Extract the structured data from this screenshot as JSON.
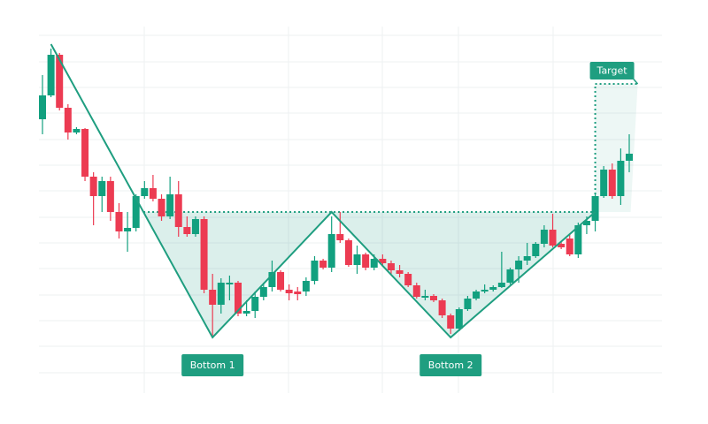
{
  "chart_data": {
    "type": "candlestick",
    "open": [
      76.25,
      83,
      94.5,
      79.5,
      72.5,
      73.5,
      60,
      54.5,
      58.75,
      50,
      44.5,
      45.5,
      54.5,
      56.75,
      53.75,
      48.75,
      55,
      45.75,
      43.75,
      48,
      28,
      23.75,
      29.5,
      30,
      21.25,
      22,
      26,
      28.75,
      33,
      28,
      27.5,
      27.5,
      30.5,
      36.25,
      34.25,
      43.75,
      42,
      35,
      38,
      34.25,
      36.75,
      35.5,
      33.5,
      32.5,
      29.25,
      25.75,
      26.25,
      25,
      20.75,
      17,
      22.5,
      25.5,
      27.5,
      28,
      28.75,
      30,
      33.75,
      36.25,
      37.5,
      41,
      45,
      41,
      42.5,
      38,
      46.25,
      47.5,
      54.5,
      62,
      54.5,
      64.5
    ],
    "high": [
      88.75,
      96.25,
      95,
      80.5,
      74,
      73.75,
      61.25,
      60,
      60,
      52.5,
      50,
      55,
      58.75,
      60.5,
      55,
      60,
      58.75,
      48.75,
      48.75,
      48.75,
      32.5,
      31.25,
      32,
      30.5,
      25,
      27.5,
      30,
      36.25,
      33.5,
      29.5,
      28.75,
      31.5,
      37.5,
      36.75,
      48.75,
      50,
      42.5,
      40.5,
      38.5,
      38,
      38,
      36.25,
      35,
      33,
      30,
      28,
      26.75,
      25.5,
      21.25,
      23,
      26.25,
      28,
      29.5,
      29.25,
      38.75,
      34.25,
      37.5,
      41.25,
      41.5,
      46.25,
      49.5,
      41.5,
      43.75,
      47,
      48.75,
      55.5,
      63,
      63.75,
      68,
      72
    ],
    "low": [
      72,
      82.5,
      78.75,
      70.5,
      72,
      58.75,
      46.25,
      50,
      47.5,
      42.5,
      38.75,
      44.5,
      53.75,
      53,
      47.5,
      48,
      43,
      43,
      43,
      27,
      15,
      21.25,
      25,
      20.5,
      20.5,
      20,
      25,
      27.5,
      27.5,
      25,
      25,
      26.25,
      29.5,
      33.75,
      33,
      41.25,
      34.5,
      32.5,
      33.5,
      33.5,
      34.5,
      32.5,
      31.5,
      28.75,
      25.5,
      25,
      24.5,
      20,
      15.5,
      16.25,
      22,
      25,
      27,
      27.5,
      28.5,
      29.5,
      30,
      35,
      37,
      40,
      40,
      39.5,
      37.5,
      37,
      43.75,
      44.5,
      54,
      53.75,
      52,
      61.25
    ],
    "close": [
      83,
      94.5,
      79.5,
      72.5,
      73.5,
      60,
      54.5,
      58.75,
      50,
      44.5,
      45.5,
      54.5,
      56.75,
      53.75,
      48.75,
      55,
      45.75,
      43.75,
      48,
      28,
      23.75,
      30,
      30,
      21.25,
      22,
      26,
      28.75,
      33,
      28,
      27,
      26.75,
      30.5,
      36.25,
      34.25,
      43.75,
      42,
      35,
      38,
      34.25,
      36.75,
      35.5,
      33.5,
      32.5,
      29.25,
      26,
      26.25,
      25,
      20.75,
      17,
      22.5,
      25.5,
      27.5,
      28,
      28.75,
      30,
      33.75,
      36.25,
      37.5,
      41,
      45,
      40.5,
      40,
      38,
      46.25,
      47.5,
      54.5,
      62,
      54.5,
      64.5,
      66.5
    ],
    "up_color": "#12a07f",
    "down_color": "#ec3b52",
    "ylim": [
      0,
      100
    ],
    "pattern": {
      "x": [
        1,
        20,
        34,
        48,
        65
      ],
      "values": [
        97.5,
        14.5,
        50,
        14.5,
        50
      ],
      "color": "#1f9e80"
    },
    "neckline": 50,
    "target": 86.25,
    "annotations": [
      "Bottom 1",
      "Bottom 2"
    ],
    "target_label": "Target"
  }
}
